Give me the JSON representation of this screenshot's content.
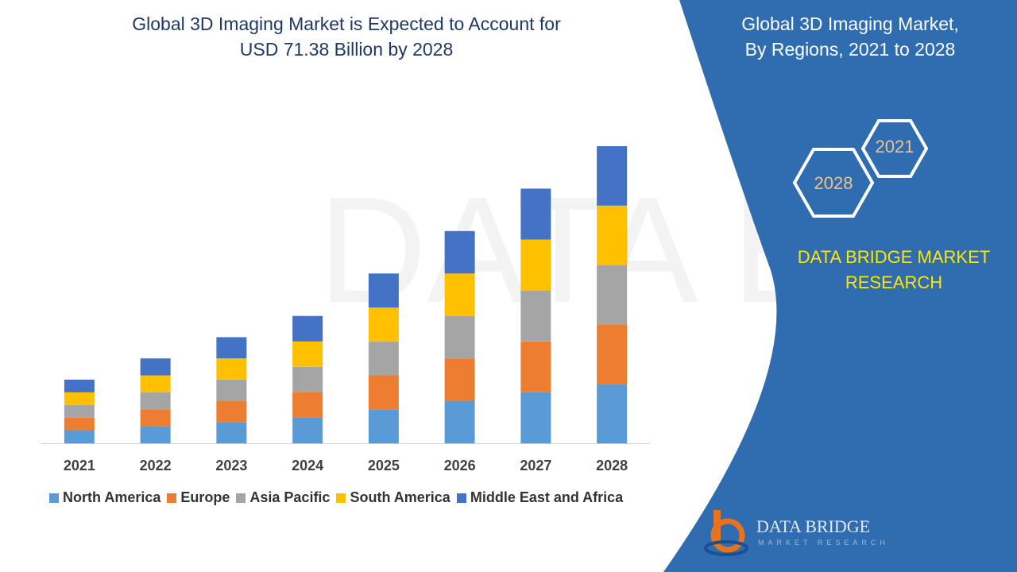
{
  "chart_title": {
    "line1": "Global 3D Imaging Market is Expected to Account for",
    "line2": "USD 71.38 Billion by 2028"
  },
  "side_panel": {
    "title_line1": "Global 3D Imaging Market,",
    "title_line2": "By Regions, 2021 to 2028",
    "hex_2021": "2021",
    "hex_2028": "2028",
    "brand_line1": "DATA BRIDGE MARKET",
    "brand_line2": "RESEARCH",
    "logo_text": "DATA BRIDGE",
    "logo_sub": "MARKET RESEARCH"
  },
  "colors": {
    "panel_blue": "#2f6db0",
    "title_navy": "#1f3864",
    "brand_yellow": "#ffe600"
  },
  "chart_data": {
    "type": "bar",
    "stacked": true,
    "categories": [
      "2021",
      "2022",
      "2023",
      "2024",
      "2025",
      "2026",
      "2027",
      "2028"
    ],
    "series": [
      {
        "name": "North America",
        "color": "#5b9bd5",
        "values": [
          1.5,
          2.0,
          2.5,
          3.0,
          4.0,
          5.0,
          6.0,
          7.0
        ]
      },
      {
        "name": "Europe",
        "color": "#ed7d31",
        "values": [
          1.5,
          2.0,
          2.5,
          3.0,
          4.0,
          5.0,
          6.0,
          7.0
        ]
      },
      {
        "name": "Asia Pacific",
        "color": "#a5a5a5",
        "values": [
          1.5,
          2.0,
          2.5,
          3.0,
          4.0,
          5.0,
          6.0,
          7.0
        ]
      },
      {
        "name": "South America",
        "color": "#ffc000",
        "values": [
          1.5,
          2.0,
          2.5,
          3.0,
          4.0,
          5.0,
          6.0,
          7.0
        ]
      },
      {
        "name": "Middle East and Africa",
        "color": "#4472c4",
        "values": [
          1.5,
          2.0,
          2.5,
          3.0,
          4.0,
          5.0,
          6.0,
          7.0
        ]
      }
    ],
    "grid": false,
    "legend_position": "bottom"
  }
}
